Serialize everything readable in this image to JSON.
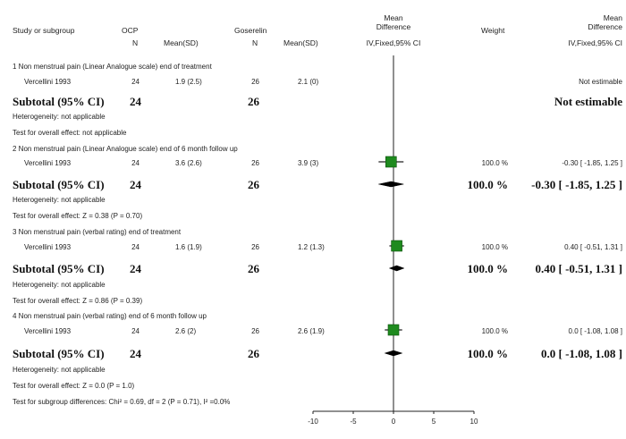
{
  "columns": {
    "study": "Study or subgroup",
    "ocp": "OCP",
    "ocp_n": "N",
    "ocp_mean": "Mean(SD)",
    "goserelin": "Goserelin",
    "gos_n": "N",
    "gos_mean": "Mean(SD)",
    "md_line1": "Mean",
    "md_line2": "Difference",
    "md_line3": "IV,Fixed,95% CI",
    "weight": "Weight",
    "md2_line1": "Mean",
    "md2_line2": "Difference",
    "md2_line3": "IV,Fixed,95% CI"
  },
  "groups": [
    {
      "title": "1 Non menstrual pain (Linear Analogue scale) end of treatment",
      "study": {
        "name": "Vercellini 1993",
        "n1": "24",
        "mean1": "1.9 (2.5)",
        "n2": "26",
        "mean2": "2.1 (0)",
        "weight": "",
        "ci_text": "Not estimable"
      },
      "subtotal": {
        "label": "Subtotal (95% CI)",
        "n1": "24",
        "n2": "26",
        "weight": "",
        "ci_text": "Not estimable"
      },
      "heterogeneity": "Heterogeneity: not applicable",
      "overall": "Test for overall effect: not applicable"
    },
    {
      "title": "2 Non menstrual pain (Linear Analogue scale) end of 6 month follow up",
      "study": {
        "name": "Vercellini 1993",
        "n1": "24",
        "mean1": "3.6 (2.6)",
        "n2": "26",
        "mean2": "3.9 (3)",
        "weight": "100.0 %",
        "ci_text": "-0.30 [ -1.85, 1.25 ]"
      },
      "subtotal": {
        "label": "Subtotal (95% CI)",
        "n1": "24",
        "n2": "26",
        "weight": "100.0 %",
        "ci_text": "-0.30 [ -1.85, 1.25 ]"
      },
      "heterogeneity": "Heterogeneity: not applicable",
      "overall": "Test for overall effect: Z = 0.38 (P = 0.70)"
    },
    {
      "title": "3 Non menstrual pain (verbal rating) end of treatment",
      "study": {
        "name": "Vercellini 1993",
        "n1": "24",
        "mean1": "1.6 (1.9)",
        "n2": "26",
        "mean2": "1.2 (1.3)",
        "weight": "100.0 %",
        "ci_text": "0.40 [ -0.51, 1.31 ]"
      },
      "subtotal": {
        "label": "Subtotal (95% CI)",
        "n1": "24",
        "n2": "26",
        "weight": "100.0 %",
        "ci_text": "0.40 [ -0.51, 1.31 ]"
      },
      "heterogeneity": "Heterogeneity: not applicable",
      "overall": "Test for overall effect: Z = 0.86 (P = 0.39)"
    },
    {
      "title": "4 Non menstrual pain (verbal rating) end of 6 month follow up",
      "study": {
        "name": "Vercellini 1993",
        "n1": "24",
        "mean1": "2.6 (2)",
        "n2": "26",
        "mean2": "2.6 (1.9)",
        "weight": "100.0 %",
        "ci_text": "0.0 [ -1.08, 1.08 ]"
      },
      "subtotal": {
        "label": "Subtotal (95% CI)",
        "n1": "24",
        "n2": "26",
        "weight": "100.0 %",
        "ci_text": "0.0 [ -1.08, 1.08 ]"
      },
      "heterogeneity": "Heterogeneity: not applicable",
      "overall": "Test for overall effect: Z = 0.0 (P = 1.0)"
    }
  ],
  "subgroup_test": "Test for subgroup differences: Chi² = 0.69, df = 2 (P = 0.71), I² =0.0%",
  "colors": {
    "marker": "#1e8a1e",
    "marker_border": "#0b4f0b",
    "line": "#222222"
  },
  "chart_data": {
    "type": "forest",
    "xlim": [
      -10,
      10
    ],
    "ticks": [
      -10,
      -5,
      0,
      5,
      10
    ],
    "tick_labels": [
      "-10",
      "-5",
      "0",
      "5",
      "10"
    ],
    "studies": [
      {
        "group": 2,
        "md": -0.3,
        "lo": -1.85,
        "hi": 1.25,
        "weight": 100.0
      },
      {
        "group": 3,
        "md": 0.4,
        "lo": -0.51,
        "hi": 1.31,
        "weight": 100.0
      },
      {
        "group": 4,
        "md": 0.0,
        "lo": -1.08,
        "hi": 1.08,
        "weight": 100.0
      }
    ],
    "subtotals": [
      {
        "group": 2,
        "md": -0.3,
        "lo": -1.85,
        "hi": 1.25
      },
      {
        "group": 3,
        "md": 0.4,
        "lo": -0.51,
        "hi": 1.31
      },
      {
        "group": 4,
        "md": 0.0,
        "lo": -1.08,
        "hi": 1.08
      }
    ]
  }
}
